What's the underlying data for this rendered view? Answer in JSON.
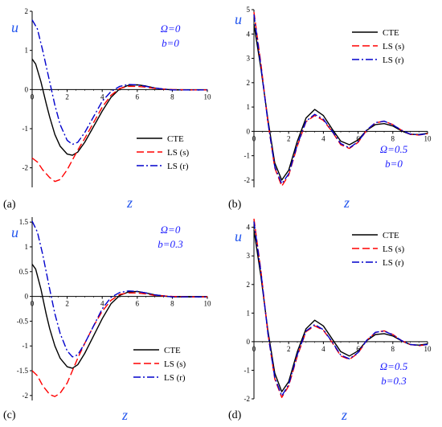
{
  "colors": {
    "cte": "#000000",
    "ls_s": "#ff0000",
    "ls_r": "#0000cc",
    "param_text": "#1a1aff",
    "axis_label": "#2255ee"
  },
  "chart_data": [
    {
      "type": "line",
      "panel_label": "(a)",
      "xlabel": "z",
      "ylabel": "u",
      "xlim": [
        0,
        10
      ],
      "ylim": [
        -2.5,
        2
      ],
      "xticks": [
        0,
        2,
        4,
        6,
        8,
        10
      ],
      "yticks": [
        -2,
        -1,
        0,
        1,
        2
      ],
      "params": [
        "Ω=0",
        "b=0"
      ],
      "legend_position": "bottom-right",
      "series": [
        {
          "name": "CTE",
          "style": "solid",
          "x": [
            0,
            0.2,
            0.5,
            0.8,
            1.0,
            1.3,
            1.6,
            2.0,
            2.3,
            2.6,
            3.0,
            3.5,
            4.0,
            4.5,
            5.0,
            5.5,
            6.0,
            6.5,
            7.0,
            7.5,
            8.0,
            9.0,
            10.0
          ],
          "y": [
            0.78,
            0.65,
            0.2,
            -0.35,
            -0.7,
            -1.15,
            -1.45,
            -1.65,
            -1.68,
            -1.6,
            -1.35,
            -0.95,
            -0.55,
            -0.2,
            0.02,
            0.11,
            0.12,
            0.09,
            0.04,
            0.01,
            -0.01,
            -0.01,
            -0.01
          ]
        },
        {
          "name": "LS (s)",
          "style": "dashed",
          "x": [
            0,
            0.3,
            0.6,
            1.0,
            1.3,
            1.6,
            2.0,
            2.3,
            2.6,
            3.0,
            3.5,
            4.0,
            4.5,
            5.0,
            5.5,
            6.0,
            6.5,
            7.0,
            7.5,
            8.0,
            9.0,
            10.0
          ],
          "y": [
            -1.75,
            -1.85,
            -2.05,
            -2.25,
            -2.35,
            -2.3,
            -2.05,
            -1.8,
            -1.55,
            -1.25,
            -0.85,
            -0.45,
            -0.15,
            0.03,
            0.08,
            0.08,
            0.06,
            0.03,
            0.01,
            0.0,
            -0.01,
            -0.01
          ]
        },
        {
          "name": "LS (r)",
          "style": "dashdot",
          "x": [
            0,
            0.3,
            0.6,
            1.0,
            1.3,
            1.6,
            2.0,
            2.3,
            2.6,
            3.0,
            3.5,
            4.0,
            4.5,
            5.0,
            5.5,
            6.0,
            6.5,
            7.0,
            7.5,
            8.0,
            9.0,
            10.0
          ],
          "y": [
            1.78,
            1.55,
            1.0,
            0.2,
            -0.4,
            -0.9,
            -1.3,
            -1.4,
            -1.35,
            -1.1,
            -0.7,
            -0.3,
            -0.05,
            0.08,
            0.13,
            0.12,
            0.08,
            0.04,
            0.01,
            -0.01,
            -0.01,
            -0.01
          ]
        }
      ]
    },
    {
      "type": "line",
      "panel_label": "(b)",
      "xlabel": "z",
      "ylabel": "u",
      "xlim": [
        0,
        10
      ],
      "ylim": [
        -2.3,
        5
      ],
      "xticks": [
        0,
        2,
        4,
        6,
        8,
        10
      ],
      "yticks": [
        -2,
        -1,
        0,
        1,
        2,
        3,
        4,
        5
      ],
      "params": [
        "Ω=0.5",
        "b=0"
      ],
      "legend_position": "top-right",
      "series": [
        {
          "name": "CTE",
          "style": "solid",
          "x": [
            0,
            0.4,
            0.8,
            1.2,
            1.6,
            2.0,
            2.5,
            3.0,
            3.5,
            4.0,
            4.5,
            5.0,
            5.5,
            6.0,
            6.5,
            7.0,
            7.5,
            8.0,
            8.5,
            9.0,
            9.5,
            10.0
          ],
          "y": [
            4.4,
            2.6,
            0.5,
            -1.3,
            -2.0,
            -1.6,
            -0.4,
            0.55,
            0.9,
            0.65,
            0.1,
            -0.4,
            -0.55,
            -0.35,
            0.05,
            0.28,
            0.32,
            0.22,
            0.02,
            -0.12,
            -0.13,
            -0.08
          ]
        },
        {
          "name": "LS (s)",
          "style": "dashed",
          "x": [
            0,
            0.4,
            0.8,
            1.2,
            1.6,
            2.0,
            2.5,
            3.0,
            3.5,
            4.0,
            4.5,
            5.0,
            5.5,
            6.0,
            6.5,
            7.0,
            7.5,
            8.0,
            8.5,
            9.0,
            9.5,
            10.0
          ],
          "y": [
            4.9,
            2.8,
            0.4,
            -1.5,
            -2.25,
            -1.8,
            -0.6,
            0.4,
            0.65,
            0.45,
            0.0,
            -0.55,
            -0.7,
            -0.45,
            0.05,
            0.35,
            0.42,
            0.28,
            0.05,
            -0.12,
            -0.15,
            -0.1
          ]
        },
        {
          "name": "LS (r)",
          "style": "dashdot",
          "x": [
            0,
            0.4,
            0.8,
            1.2,
            1.6,
            2.0,
            2.5,
            3.0,
            3.5,
            4.0,
            4.5,
            5.0,
            5.5,
            6.0,
            6.5,
            7.0,
            7.5,
            8.0,
            8.5,
            9.0,
            9.5,
            10.0
          ],
          "y": [
            4.8,
            2.7,
            0.4,
            -1.45,
            -2.15,
            -1.75,
            -0.55,
            0.42,
            0.7,
            0.5,
            0.02,
            -0.5,
            -0.68,
            -0.42,
            0.06,
            0.36,
            0.42,
            0.27,
            0.05,
            -0.11,
            -0.14,
            -0.1
          ]
        }
      ]
    },
    {
      "type": "line",
      "panel_label": "(c)",
      "xlabel": "z",
      "ylabel": "u",
      "xlim": [
        0,
        10
      ],
      "ylim": [
        -2.1,
        1.6
      ],
      "xticks": [
        0,
        2,
        4,
        6,
        8,
        10
      ],
      "yticks": [
        -2,
        -1.5,
        -1,
        -0.5,
        0,
        0.5,
        1,
        1.5
      ],
      "params": [
        "Ω=0",
        "b=0.3"
      ],
      "legend_position": "bottom-right",
      "series": [
        {
          "name": "CTE",
          "style": "solid",
          "x": [
            0,
            0.2,
            0.5,
            0.8,
            1.0,
            1.3,
            1.6,
            2.0,
            2.3,
            2.6,
            3.0,
            3.5,
            4.0,
            4.5,
            5.0,
            5.5,
            6.0,
            6.5,
            7.0,
            7.5,
            8.0,
            9.0,
            10.0
          ],
          "y": [
            0.65,
            0.55,
            0.15,
            -0.35,
            -0.65,
            -1.0,
            -1.25,
            -1.42,
            -1.45,
            -1.38,
            -1.15,
            -0.8,
            -0.45,
            -0.15,
            0.02,
            0.09,
            0.1,
            0.07,
            0.03,
            0.01,
            -0.01,
            -0.01,
            -0.01
          ]
        },
        {
          "name": "LS (s)",
          "style": "dashed",
          "x": [
            0,
            0.3,
            0.6,
            1.0,
            1.3,
            1.6,
            2.0,
            2.3,
            2.6,
            3.0,
            3.5,
            4.0,
            4.5,
            5.0,
            5.5,
            6.0,
            6.5,
            7.0,
            7.5,
            8.0,
            9.0,
            10.0
          ],
          "y": [
            -1.5,
            -1.6,
            -1.8,
            -1.98,
            -2.02,
            -1.95,
            -1.75,
            -1.5,
            -1.25,
            -0.95,
            -0.6,
            -0.3,
            -0.08,
            0.04,
            0.07,
            0.07,
            0.05,
            0.02,
            0.01,
            0.0,
            -0.01,
            -0.01
          ]
        },
        {
          "name": "LS (r)",
          "style": "dashdot",
          "x": [
            0,
            0.3,
            0.6,
            1.0,
            1.3,
            1.6,
            2.0,
            2.3,
            2.6,
            3.0,
            3.5,
            4.0,
            4.5,
            5.0,
            5.5,
            6.0,
            6.5,
            7.0,
            7.5,
            8.0,
            9.0,
            10.0
          ],
          "y": [
            1.52,
            1.3,
            0.85,
            0.15,
            -0.35,
            -0.75,
            -1.1,
            -1.22,
            -1.18,
            -0.95,
            -0.6,
            -0.25,
            -0.02,
            0.08,
            0.11,
            0.1,
            0.07,
            0.03,
            0.01,
            -0.01,
            -0.01,
            -0.01
          ]
        }
      ]
    },
    {
      "type": "line",
      "panel_label": "(d)",
      "xlabel": "z",
      "ylabel": "u",
      "xlim": [
        0,
        10
      ],
      "ylim": [
        -2,
        4.3
      ],
      "xticks": [
        0,
        2,
        4,
        6,
        8,
        10
      ],
      "yticks": [
        -2,
        -1,
        0,
        1,
        2,
        3,
        4
      ],
      "params": [
        "Ω=0.5",
        "b=0.3"
      ],
      "legend_position": "top-right",
      "series": [
        {
          "name": "CTE",
          "style": "solid",
          "x": [
            0,
            0.4,
            0.8,
            1.2,
            1.6,
            2.0,
            2.5,
            3.0,
            3.5,
            4.0,
            4.5,
            5.0,
            5.5,
            6.0,
            6.5,
            7.0,
            7.5,
            8.0,
            8.5,
            9.0,
            9.5,
            10.0
          ],
          "y": [
            3.9,
            2.3,
            0.4,
            -1.1,
            -1.75,
            -1.4,
            -0.35,
            0.45,
            0.75,
            0.55,
            0.1,
            -0.35,
            -0.5,
            -0.32,
            0.04,
            0.25,
            0.28,
            0.2,
            0.03,
            -0.1,
            -0.12,
            -0.08
          ]
        },
        {
          "name": "LS (s)",
          "style": "dashed",
          "x": [
            0,
            0.4,
            0.8,
            1.2,
            1.6,
            2.0,
            2.5,
            3.0,
            3.5,
            4.0,
            4.5,
            5.0,
            5.5,
            6.0,
            6.5,
            7.0,
            7.5,
            8.0,
            8.5,
            9.0,
            9.5,
            10.0
          ],
          "y": [
            4.3,
            2.5,
            0.3,
            -1.3,
            -1.95,
            -1.55,
            -0.5,
            0.35,
            0.55,
            0.4,
            -0.02,
            -0.5,
            -0.62,
            -0.4,
            0.05,
            0.32,
            0.38,
            0.25,
            0.04,
            -0.1,
            -0.14,
            -0.1
          ]
        },
        {
          "name": "LS (r)",
          "style": "dashdot",
          "x": [
            0,
            0.4,
            0.8,
            1.2,
            1.6,
            2.0,
            2.5,
            3.0,
            3.5,
            4.0,
            4.5,
            5.0,
            5.5,
            6.0,
            6.5,
            7.0,
            7.5,
            8.0,
            8.5,
            9.0,
            9.5,
            10.0
          ],
          "y": [
            4.2,
            2.45,
            0.3,
            -1.25,
            -1.9,
            -1.5,
            -0.45,
            0.37,
            0.6,
            0.42,
            0.0,
            -0.47,
            -0.6,
            -0.38,
            0.05,
            0.33,
            0.37,
            0.24,
            0.04,
            -0.1,
            -0.13,
            -0.1
          ]
        }
      ]
    }
  ]
}
